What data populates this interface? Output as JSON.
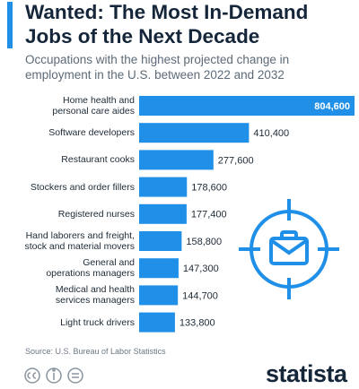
{
  "chart_data": {
    "type": "bar",
    "orientation": "horizontal",
    "title": "Wanted: The Most In-Demand Jobs of the Next Decade",
    "subtitle": "Occupations with the highest projected change in employment in the U.S. between 2022 and 2032",
    "categories": [
      "Home health and\npersonal care aides",
      "Software developers",
      "Restaurant cooks",
      "Stockers and order fillers",
      "Registered nurses",
      "Hand laborers and freight,\nstock and material movers",
      "General and\noperations managers",
      "Medical and health\nservices managers",
      "Light truck drivers"
    ],
    "values": [
      804600,
      410400,
      277600,
      178600,
      177400,
      158800,
      147300,
      144700,
      133800
    ],
    "value_labels": [
      "804,600",
      "410,400",
      "277,600",
      "178,600",
      "177,400",
      "158,800",
      "147,300",
      "144,700",
      "133,800"
    ],
    "color": "#1f8fe8",
    "source": "Source: U.S. Bureau of Labor Statistics",
    "brand": "statista"
  }
}
